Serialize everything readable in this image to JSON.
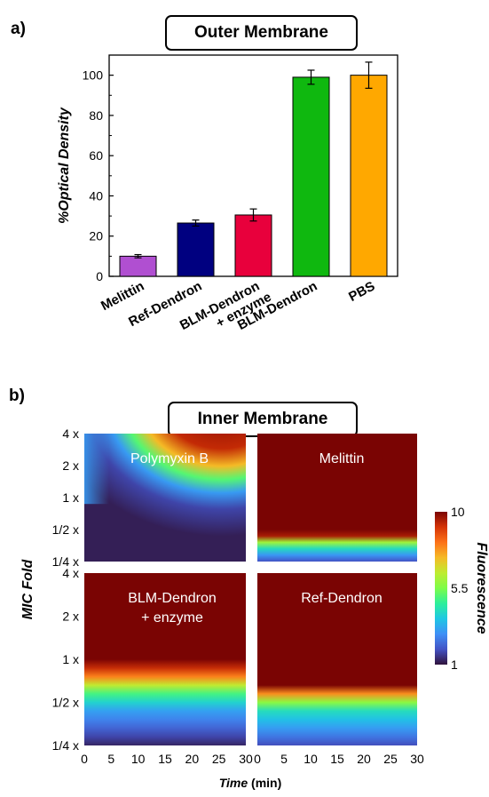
{
  "panel_a": {
    "label": "a)",
    "title": "Outer Membrane"
  },
  "panel_b": {
    "label": "b)",
    "title": "Inner Membrane"
  },
  "chart_data": [
    {
      "type": "bar",
      "title": "Outer Membrane",
      "ylabel": "%Optical Density",
      "xlabel": "",
      "ylim": [
        0,
        110
      ],
      "yticks": [
        0,
        20,
        40,
        60,
        80,
        100
      ],
      "categories": [
        "Melittin",
        "Ref-Dendron",
        "BLM-Dendron\n+ enzyme",
        "BLM-Dendron",
        "PBS"
      ],
      "category_lines": [
        [
          "Melittin"
        ],
        [
          "Ref-Dendron"
        ],
        [
          "BLM-Dendron",
          "+ enzyme"
        ],
        [
          "BLM-Dendron"
        ],
        [
          "PBS"
        ]
      ],
      "values": [
        10,
        26.5,
        30.5,
        99,
        100
      ],
      "errors": [
        0.8,
        1.5,
        3,
        3.5,
        6.5
      ],
      "colors": [
        "#b04fd1",
        "#000080",
        "#e8003c",
        "#0fb80f",
        "#ffa800"
      ]
    },
    {
      "type": "heatmap",
      "title": "Inner Membrane",
      "ylabel": "MIC Fold",
      "xlabel_italic": "Time",
      "xlabel_unit": "(min)",
      "x_range": [
        0,
        30
      ],
      "xticks": [
        0,
        5,
        10,
        15,
        20,
        25,
        30
      ],
      "yticks": [
        "1/4 x",
        "1/2 x",
        "1 x",
        "2 x",
        "4 x"
      ],
      "yticks_num": [
        0.25,
        0.5,
        1,
        2,
        4
      ],
      "colorbar": {
        "label": "Fluorescence",
        "ticks": [
          1,
          5.5,
          10
        ],
        "min": 1,
        "max": 10,
        "colormap": "turbo"
      },
      "panels": [
        {
          "name": "Polymyxin B",
          "label_lines": [
            "Polymyxin B"
          ]
        },
        {
          "name": "Melittin",
          "label_lines": [
            "Melittin"
          ]
        },
        {
          "name": "BLM-Dendron + enzyme",
          "label_lines": [
            "BLM-Dendron",
            "+ enzyme"
          ]
        },
        {
          "name": "Ref-Dendron",
          "label_lines": [
            "Ref-Dendron"
          ]
        }
      ]
    }
  ]
}
